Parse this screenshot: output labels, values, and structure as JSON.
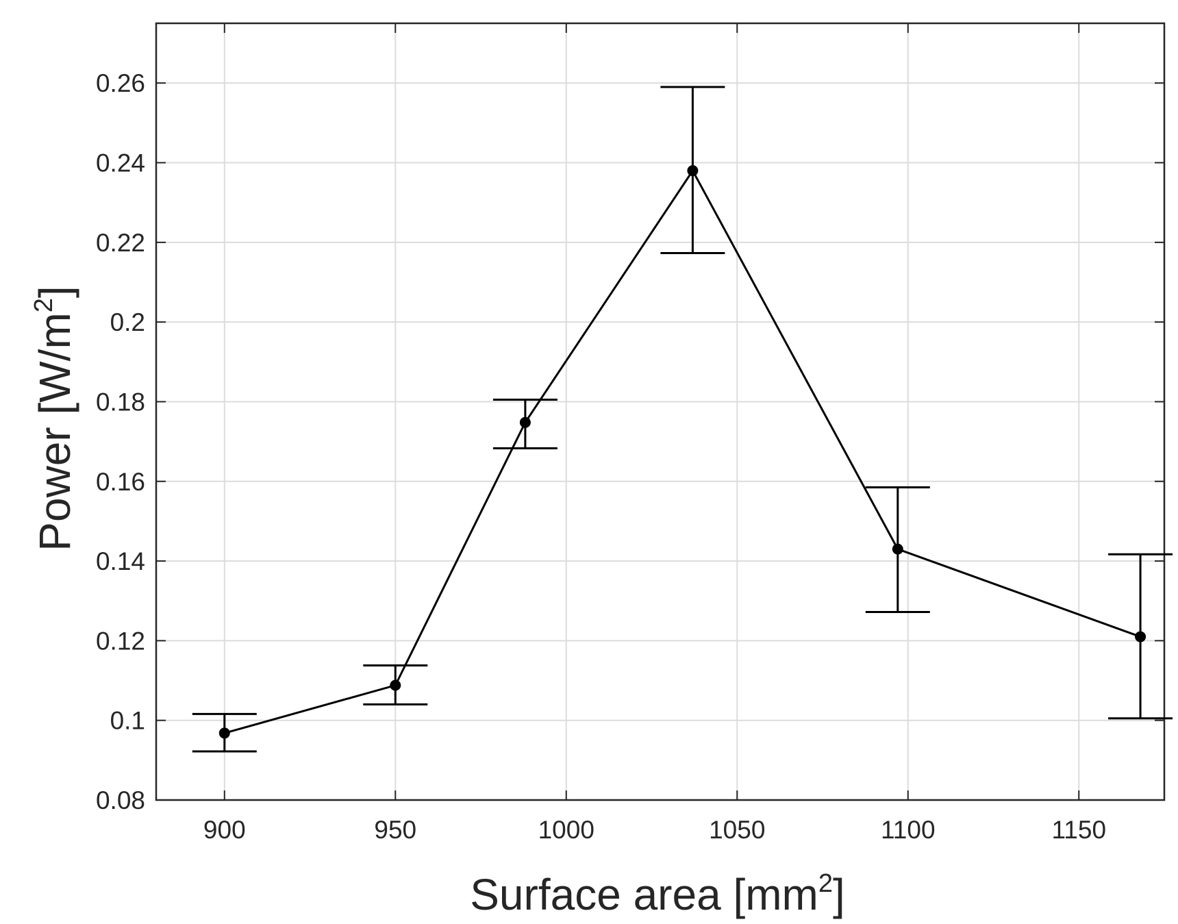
{
  "chart_data": {
    "type": "line",
    "x": [
      900,
      950,
      988,
      1037,
      1097,
      1168
    ],
    "series": [
      {
        "values": [
          0.0968,
          0.1088,
          0.1748,
          0.238,
          0.143,
          0.121
        ],
        "error_lower": [
          0.0922,
          0.104,
          0.1683,
          0.2173,
          0.1272,
          0.1005
        ],
        "error_upper": [
          0.1016,
          0.1138,
          0.1805,
          0.259,
          0.1585,
          0.1417
        ]
      }
    ],
    "xlabel": "Surface area [mm",
    "xlabel_sup": "2",
    "xlabel_end": "]",
    "ylabel": "Power [W/m",
    "ylabel_sup": "2",
    "ylabel_end": "]",
    "xlim": [
      880,
      1175
    ],
    "ylim": [
      0.08,
      0.275
    ],
    "x_ticks": [
      900,
      950,
      1000,
      1050,
      1100,
      1150
    ],
    "x_tick_labels": [
      "900",
      "950",
      "1000",
      "1050",
      "1100",
      "1150"
    ],
    "y_ticks": [
      0.08,
      0.1,
      0.12,
      0.14,
      0.16,
      0.18,
      0.2,
      0.22,
      0.24,
      0.26
    ],
    "y_tick_labels": [
      "0.08",
      "0.1",
      "0.12",
      "0.14",
      "0.16",
      "0.18",
      "0.2",
      "0.22",
      "0.24",
      "0.26"
    ],
    "grid": true,
    "line_color": "#000000",
    "grid_color": "#dcdcdc",
    "axis_color": "#262626"
  }
}
